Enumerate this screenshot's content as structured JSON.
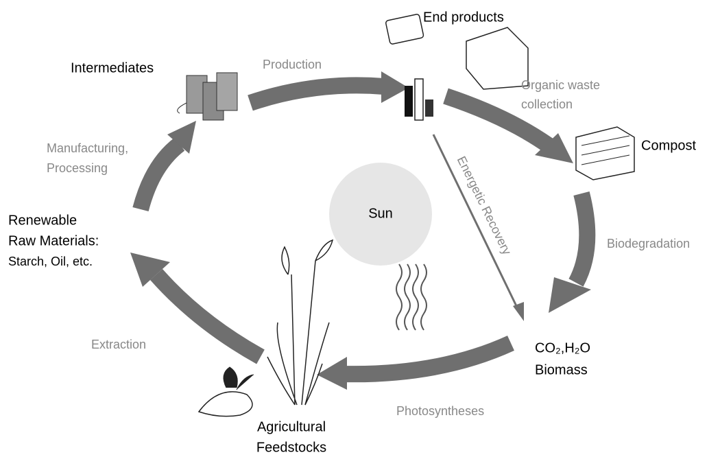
{
  "center": "Sun",
  "nodes": [
    {
      "lines": [
        "End products"
      ]
    },
    {
      "lines": [
        "Compost"
      ]
    },
    {
      "lines": [
        "CO₂,H₂O",
        "Biomass"
      ]
    },
    {
      "lines": [
        "Agricultural",
        "Feedstocks"
      ]
    },
    {
      "lines": [
        "Renewable",
        "Raw Materials:",
        "Starch, Oil, etc."
      ]
    },
    {
      "lines": [
        "Intermediates"
      ]
    }
  ],
  "processes": [
    {
      "lines": [
        "Production"
      ]
    },
    {
      "lines": [
        "Organic waste",
        "collection"
      ]
    },
    {
      "lines": [
        "Biodegradation"
      ]
    },
    {
      "lines": [
        "Photosyntheses"
      ]
    },
    {
      "lines": [
        "Extraction"
      ]
    },
    {
      "lines": [
        "Manufacturing,",
        "Processing"
      ]
    },
    {
      "lines": [
        "Energetic Recovery"
      ]
    }
  ]
}
